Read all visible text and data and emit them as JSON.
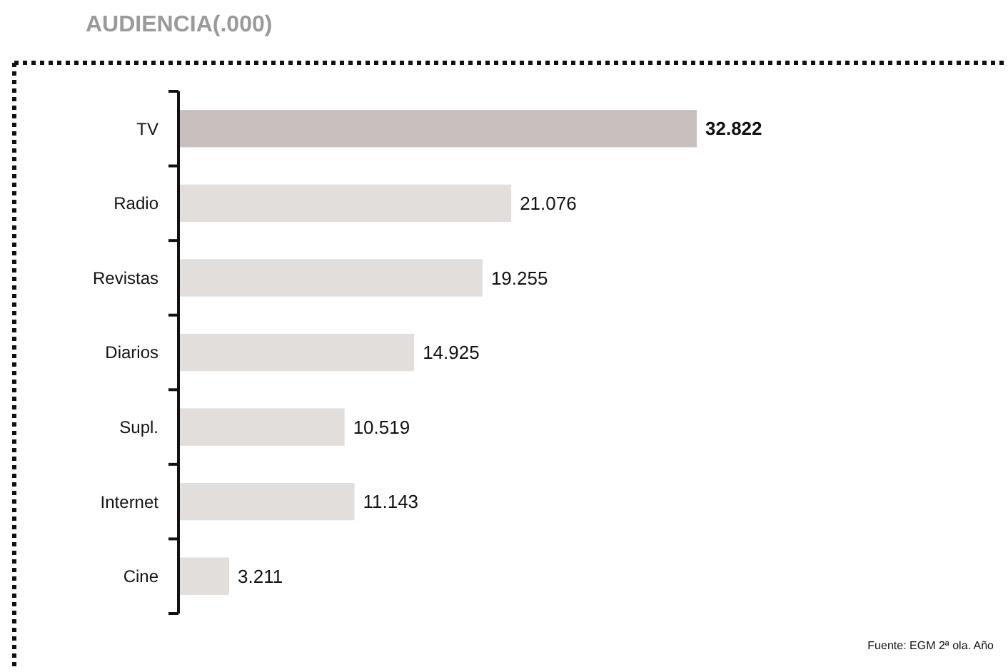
{
  "chart_data": {
    "type": "bar",
    "orientation": "horizontal",
    "title": "AUDIENCIA(.000)",
    "categories": [
      "TV",
      "Radio",
      "Revistas",
      "Diarios",
      "Supl.",
      "Internet",
      "Cine"
    ],
    "values": [
      32.822,
      21.076,
      19.255,
      14.925,
      10.519,
      11.143,
      3.211
    ],
    "value_labels": [
      "32.822",
      "21.076",
      "19.255",
      "14.925",
      "10.519",
      "11.143",
      "3.211"
    ],
    "colors": [
      "#c8c0be",
      "#e2dedb",
      "#e2dedb",
      "#e2dedb",
      "#e2dedb",
      "#e2dedb",
      "#e2dedb"
    ],
    "annotations": [
      "Fuente: EGM 2ª ola. Año"
    ]
  }
}
